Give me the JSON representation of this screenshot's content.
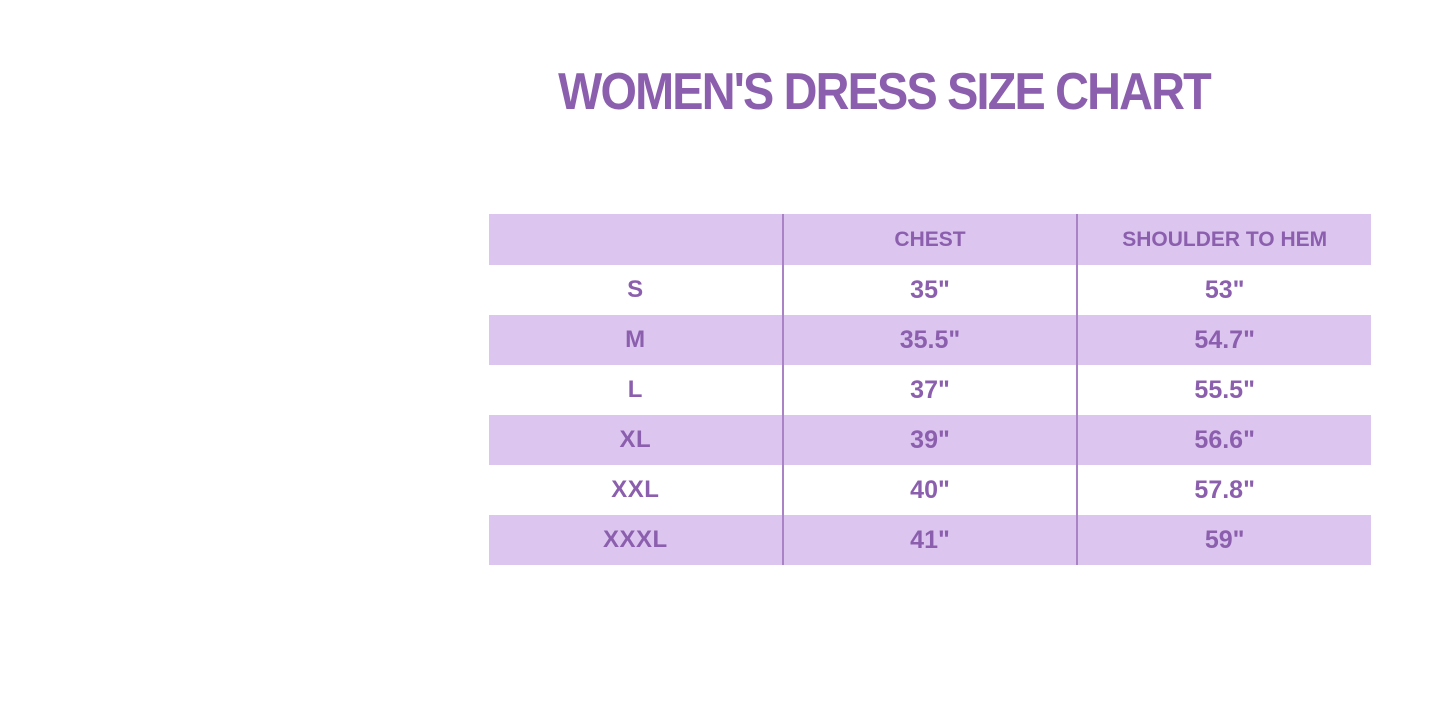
{
  "page": {
    "title": "WOMEN'S DRESS SIZE CHART"
  },
  "colors": {
    "background": "#ffffff",
    "accent_purple": "#8c5fae",
    "text_purple": "#8a5ba9",
    "row_lavender": "#dcc6ef",
    "divider": "#a983c6"
  },
  "chart_data": {
    "type": "table",
    "title": "WOMEN'S DRESS SIZE CHART",
    "columns": [
      "",
      "CHEST",
      "SHOULDER TO HEM"
    ],
    "rows": [
      [
        "S",
        "35\"",
        "53\""
      ],
      [
        "M",
        "35.5\"",
        "54.7\""
      ],
      [
        "L",
        "37\"",
        "55.5\""
      ],
      [
        "XL",
        "39\"",
        "56.6\""
      ],
      [
        "XXL",
        "40\"",
        "57.8\""
      ],
      [
        "XXXL",
        "41\"",
        "59\""
      ]
    ],
    "layout": {
      "shaded_rows": [
        "header",
        "M",
        "XL",
        "XXXL"
      ],
      "grid": "vertical-dividers-only",
      "row_striping": "alternating lavender/white starting with lavender header"
    }
  }
}
